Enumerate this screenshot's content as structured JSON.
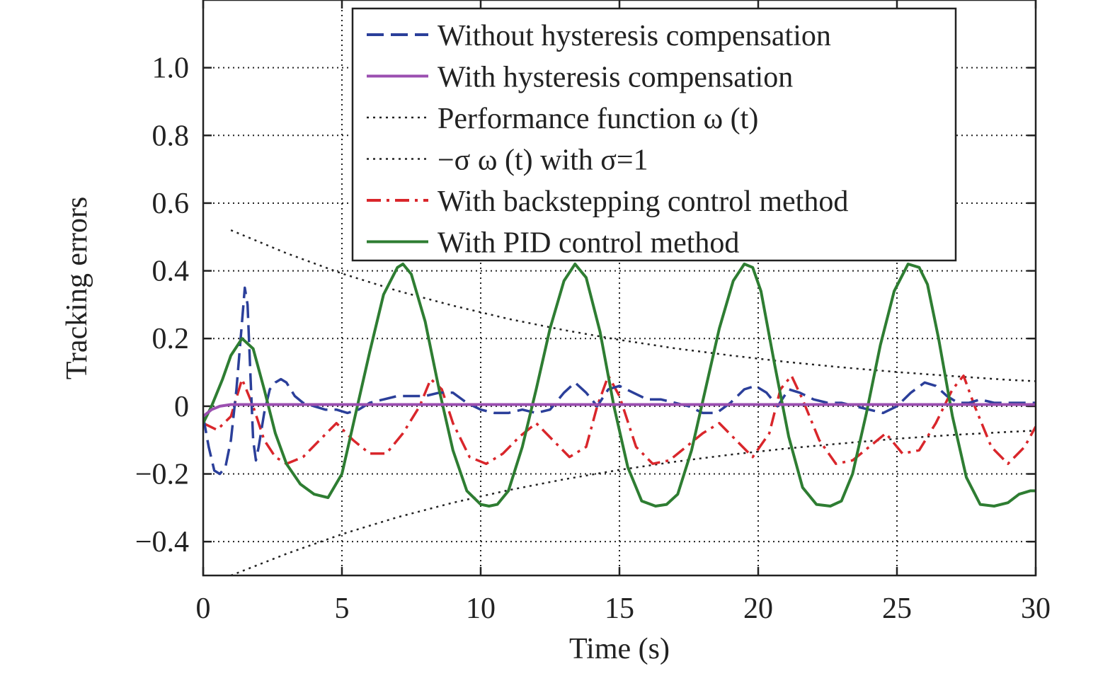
{
  "chart_data": {
    "type": "line",
    "xlabel": "Time (s)",
    "ylabel": "Tracking errors",
    "xlim": [
      0,
      30
    ],
    "ylim": [
      -0.5,
      1.2
    ],
    "xticks": [
      0,
      5,
      10,
      15,
      20,
      25,
      30
    ],
    "xtick_labels": [
      "0",
      "5",
      "10",
      "15",
      "20",
      "25",
      "30"
    ],
    "yticks": [
      -0.4,
      -0.2,
      0,
      0.2,
      0.4,
      0.6,
      0.8,
      1.0
    ],
    "ytick_labels": [
      "−0.4",
      "−0.2",
      "0",
      "0.2",
      "0.4",
      "0.6",
      "0.8",
      "1.0"
    ],
    "grid": true,
    "legend_position": "top-center",
    "series": [
      {
        "name": "Without hysteresis compensation",
        "color": "#2b3f9a",
        "style": "dashed",
        "x": [
          0,
          0.2,
          0.4,
          0.6,
          0.8,
          1.0,
          1.2,
          1.4,
          1.5,
          1.6,
          1.7,
          1.8,
          1.9,
          2.0,
          2.2,
          2.4,
          2.6,
          2.8,
          3.0,
          3.3,
          3.6,
          4.0,
          4.4,
          4.8,
          5.2,
          5.6,
          6.0,
          6.5,
          7.0,
          7.5,
          8.0,
          8.5,
          9.0,
          9.5,
          10.0,
          10.5,
          11.0,
          11.5,
          12.0,
          12.5,
          13.0,
          13.4,
          13.8,
          14.2,
          14.6,
          15.0,
          15.5,
          16.0,
          16.5,
          17.0,
          17.5,
          18.0,
          18.5,
          19.0,
          19.5,
          19.9,
          20.3,
          20.7,
          21.1,
          21.5,
          22.0,
          22.5,
          23.0,
          23.5,
          24.0,
          24.5,
          25.0,
          25.5,
          26.0,
          26.4,
          26.8,
          27.2,
          27.6,
          28.0,
          28.5,
          29.0,
          29.5,
          30.0
        ],
        "values": [
          -0.03,
          -0.12,
          -0.19,
          -0.2,
          -0.18,
          -0.1,
          0.05,
          0.25,
          0.35,
          0.3,
          0.1,
          -0.1,
          -0.16,
          -0.12,
          -0.02,
          0.05,
          0.07,
          0.08,
          0.07,
          0.03,
          0.01,
          0.0,
          -0.01,
          -0.01,
          -0.02,
          -0.01,
          0.01,
          0.02,
          0.03,
          0.03,
          0.03,
          0.04,
          0.04,
          0.01,
          -0.01,
          -0.02,
          -0.02,
          -0.01,
          -0.02,
          -0.01,
          0.04,
          0.07,
          0.04,
          0.0,
          0.05,
          0.06,
          0.04,
          0.02,
          0.02,
          0.01,
          0.0,
          -0.02,
          -0.02,
          0.01,
          0.05,
          0.06,
          0.04,
          0.0,
          0.05,
          0.04,
          0.02,
          0.01,
          0.01,
          0.0,
          -0.01,
          -0.02,
          0.0,
          0.04,
          0.07,
          0.06,
          0.03,
          0.01,
          0.01,
          0.02,
          0.01,
          0.01,
          0.01,
          0.01
        ]
      },
      {
        "name": "With hysteresis compensation",
        "color": "#9b4fb0",
        "style": "solid",
        "x": [
          0,
          0.3,
          0.6,
          1.0,
          2.0,
          5.0,
          10.0,
          15.0,
          20.0,
          25.0,
          30.0
        ],
        "values": [
          -0.03,
          -0.01,
          0.0,
          0.005,
          0.005,
          0.005,
          0.005,
          0.005,
          0.005,
          0.005,
          0.005
        ]
      },
      {
        "name": "Performance function ω (t)",
        "color": "#222222",
        "style": "dotted",
        "x": [
          1,
          3,
          5,
          7,
          9,
          11,
          13,
          15,
          17,
          19,
          21,
          23,
          25,
          27,
          29,
          30
        ],
        "values": [
          0.52,
          0.452,
          0.392,
          0.341,
          0.297,
          0.258,
          0.225,
          0.196,
          0.171,
          0.15,
          0.131,
          0.115,
          0.101,
          0.089,
          0.078,
          0.074
        ]
      },
      {
        "name": "−σ ω (t) with σ=1",
        "color": "#222222",
        "style": "dotted",
        "x": [
          1,
          3,
          5,
          7,
          9,
          11,
          13,
          15,
          17,
          19,
          21,
          23,
          25,
          27,
          29,
          30
        ],
        "values": [
          -0.5,
          -0.436,
          -0.378,
          -0.328,
          -0.285,
          -0.248,
          -0.216,
          -0.188,
          -0.164,
          -0.143,
          -0.125,
          -0.11,
          -0.096,
          -0.085,
          -0.076,
          -0.072
        ]
      },
      {
        "name": "With backstepping control method",
        "color": "#d9262b",
        "style": "dashdot",
        "x": [
          0,
          0.5,
          1.0,
          1.4,
          1.8,
          2.2,
          2.6,
          3.0,
          3.6,
          4.2,
          4.8,
          5.4,
          6.0,
          6.6,
          7.2,
          7.8,
          8.2,
          8.6,
          9.0,
          9.6,
          10.2,
          10.8,
          11.4,
          12.0,
          12.6,
          13.2,
          13.8,
          14.2,
          14.6,
          15.0,
          15.6,
          16.2,
          16.8,
          17.4,
          18.0,
          18.6,
          19.2,
          19.8,
          20.4,
          20.8,
          21.2,
          21.6,
          22.2,
          22.8,
          23.4,
          24.0,
          24.6,
          25.2,
          25.8,
          26.4,
          27.0,
          27.4,
          27.8,
          28.4,
          29.0,
          29.6,
          30.0
        ],
        "values": [
          -0.05,
          -0.07,
          -0.03,
          0.08,
          0.0,
          -0.1,
          -0.15,
          -0.17,
          -0.15,
          -0.1,
          -0.05,
          -0.1,
          -0.14,
          -0.14,
          -0.08,
          0.0,
          0.08,
          0.05,
          -0.05,
          -0.15,
          -0.17,
          -0.14,
          -0.09,
          -0.05,
          -0.1,
          -0.15,
          -0.12,
          0.0,
          0.09,
          0.03,
          -0.12,
          -0.17,
          -0.16,
          -0.12,
          -0.08,
          -0.05,
          -0.1,
          -0.15,
          -0.08,
          0.05,
          0.09,
          0.02,
          -0.1,
          -0.17,
          -0.16,
          -0.12,
          -0.08,
          -0.14,
          -0.13,
          -0.05,
          0.05,
          0.09,
          0.0,
          -0.12,
          -0.17,
          -0.12,
          -0.06
        ]
      },
      {
        "name": "With PID control method",
        "color": "#2e7d32",
        "style": "solid",
        "x": [
          0,
          0.3,
          0.7,
          1.0,
          1.4,
          1.8,
          2.2,
          2.6,
          3.0,
          3.5,
          4.0,
          4.5,
          5.0,
          5.5,
          6.0,
          6.5,
          7.0,
          7.2,
          7.5,
          8.0,
          8.5,
          9.0,
          9.5,
          10.0,
          10.3,
          10.6,
          11.0,
          11.5,
          12.0,
          12.5,
          13.0,
          13.4,
          13.8,
          14.3,
          14.8,
          15.3,
          15.8,
          16.3,
          16.7,
          17.1,
          17.6,
          18.1,
          18.6,
          19.1,
          19.5,
          19.8,
          20.1,
          20.6,
          21.1,
          21.6,
          22.1,
          22.6,
          23.0,
          23.4,
          23.9,
          24.4,
          24.9,
          25.4,
          25.8,
          26.1,
          26.5,
          27.0,
          27.5,
          28.0,
          28.5,
          29.0,
          29.4,
          29.8,
          30.0
        ],
        "values": [
          -0.05,
          0.0,
          0.08,
          0.15,
          0.2,
          0.17,
          0.05,
          -0.08,
          -0.17,
          -0.23,
          -0.26,
          -0.27,
          -0.2,
          -0.02,
          0.16,
          0.33,
          0.41,
          0.42,
          0.39,
          0.25,
          0.05,
          -0.13,
          -0.25,
          -0.29,
          -0.295,
          -0.29,
          -0.25,
          -0.12,
          0.05,
          0.23,
          0.37,
          0.42,
          0.38,
          0.22,
          0.0,
          -0.18,
          -0.28,
          -0.295,
          -0.29,
          -0.26,
          -0.13,
          0.05,
          0.23,
          0.37,
          0.42,
          0.41,
          0.34,
          0.12,
          -0.09,
          -0.24,
          -0.29,
          -0.295,
          -0.28,
          -0.2,
          -0.02,
          0.18,
          0.34,
          0.42,
          0.41,
          0.36,
          0.2,
          -0.03,
          -0.21,
          -0.29,
          -0.295,
          -0.285,
          -0.26,
          -0.25,
          -0.25
        ]
      }
    ]
  }
}
